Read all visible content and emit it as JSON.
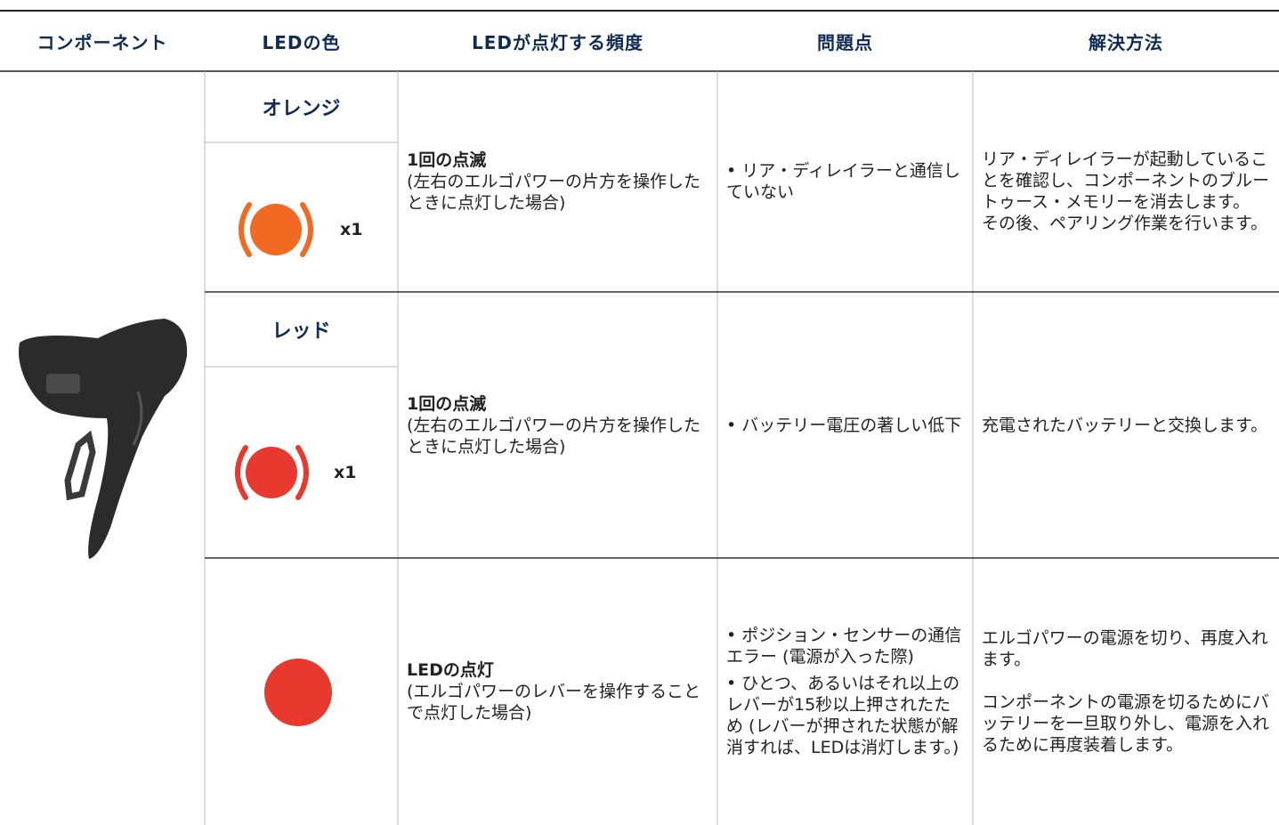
{
  "table": {
    "header": [
      "コンポーネント",
      "LEDの色",
      "LEDが点灯する頻度",
      "問題点",
      "解決方法"
    ],
    "rows": [
      {
        "led_color": "オレンジ",
        "indicator": "x1",
        "frequency_title": "1回の点滅",
        "frequency_note": "(左右のエルゴパワーの片方を操作したときに点灯した場合)",
        "problems": [
          "• リア・ディレイラーと通信していない"
        ],
        "solution": [
          "リア・ディレイラーが起動していることを確認し、コンポーネントのブルートゥース・メモリーを消去します。",
          "その後、ペアリング作業を行います。"
        ]
      },
      {
        "led_color": "レッド",
        "indicator": "x1",
        "frequency_title": "1回の点滅",
        "frequency_note": "(左右のエルゴパワーの片方を操作したときに点灯した場合)",
        "problems": [
          "• バッテリー電圧の著しい低下"
        ],
        "solution": [
          "充電されたバッテリーと交換します。"
        ]
      },
      {
        "frequency_title": "LEDの点灯",
        "frequency_note": "(エルゴパワーのレバーを操作することで点灯した場合)",
        "problems": [
          "• ポジション・センサーの通信エラー (電源が入った際)",
          "• ひとつ、あるいはそれ以上のレバーが15秒以上押されたため (レバーが押された状態が解消すれば、LEDは消灯します。)"
        ],
        "solution": [
          "エルゴパワーの電源を切り、再度入れます。",
          "コンポーネントの電源を切るためにバッテリーを一旦取り外し、電源を入れるために再度装着します。"
        ]
      }
    ]
  }
}
